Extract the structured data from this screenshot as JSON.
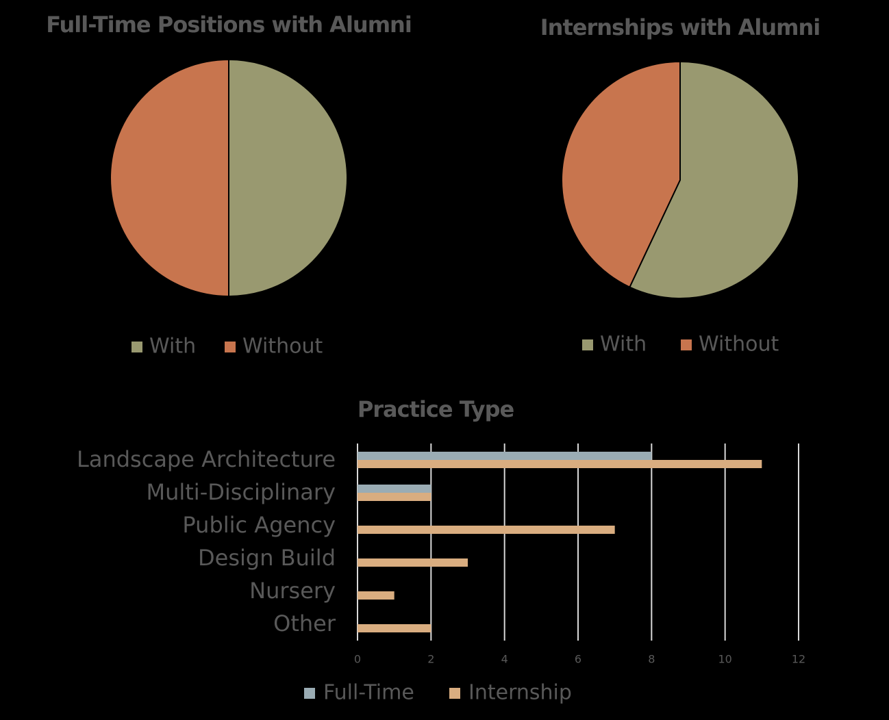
{
  "chart_data": [
    {
      "type": "pie",
      "title": "Full-Time Positions with Alumni",
      "categories": [
        "With",
        "Without"
      ],
      "values": [
        50,
        50
      ],
      "colors": [
        "#999970",
        "#c8754e"
      ],
      "legend": "bottom"
    },
    {
      "type": "pie",
      "title": "Internships with Alumni",
      "categories": [
        "With",
        "Without"
      ],
      "values": [
        57,
        43
      ],
      "colors": [
        "#999970",
        "#c8754e"
      ],
      "legend": "bottom"
    },
    {
      "type": "bar",
      "orientation": "horizontal",
      "title": "Practice Type",
      "categories": [
        "Landscape Architecture",
        "Multi-Disciplinary",
        "Public Agency",
        "Design Build",
        "Nursery",
        "Other"
      ],
      "series": [
        {
          "name": "Full-Time",
          "color": "#9aacb4",
          "values": [
            8,
            2,
            0,
            0,
            0,
            0
          ]
        },
        {
          "name": "Internship",
          "color": "#d9ad80",
          "values": [
            11,
            2,
            7,
            3,
            1,
            2
          ]
        }
      ],
      "xlim": [
        0,
        12
      ],
      "xticks": [
        0,
        2,
        4,
        6,
        8,
        10,
        12
      ],
      "grid": true,
      "legend": "bottom"
    }
  ]
}
